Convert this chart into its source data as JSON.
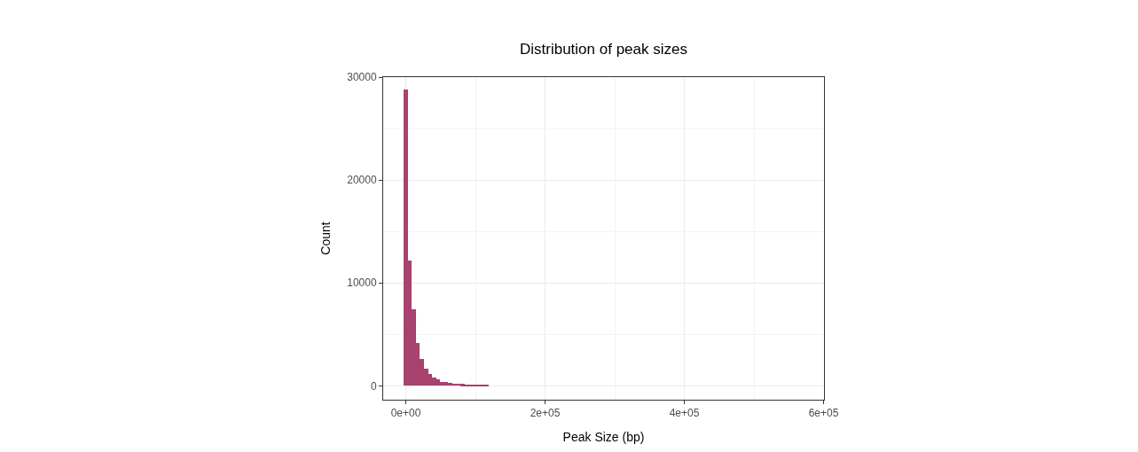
{
  "chart_data": {
    "type": "histogram",
    "title": "Distribution of peak sizes",
    "xlabel": "Peak Size (bp)",
    "ylabel": "Count",
    "color": "#a8426e",
    "bins": [
      -2900,
      2900,
      8700,
      14500,
      20300,
      26100,
      31900,
      37700,
      43500,
      49300,
      55100,
      60900,
      66700,
      72500,
      78300,
      84100,
      89900,
      95700,
      101500,
      107300,
      113100,
      118900,
      124700,
      130500,
      136300,
      142100,
      147900,
      153700,
      159500,
      165300,
      171100,
      176900,
      182700,
      188500,
      194300,
      200100,
      205900,
      211700,
      217500,
      223300,
      229100,
      234900,
      240700,
      246500,
      252300,
      258100,
      263900,
      269700,
      275500,
      281300,
      287100,
      292900,
      298700,
      304500,
      310300,
      316100,
      321900,
      327700,
      333500,
      339300,
      345100,
      350900,
      356700,
      362500,
      368300,
      374100,
      379900,
      385700,
      391500,
      397300,
      403100,
      408900,
      414700,
      420500,
      426300,
      432100,
      437900,
      443700,
      449500,
      455300,
      461100,
      466900,
      472700,
      478500,
      484300,
      490100,
      495900,
      501700,
      507500,
      513300,
      519100,
      524900,
      530700,
      536500,
      542300,
      548100,
      553900,
      559700,
      565500,
      571300,
      577100
    ],
    "values": [
      28770,
      12150,
      7460,
      4190,
      2600,
      1680,
      1120,
      840,
      670,
      420,
      340,
      280,
      250,
      220,
      170,
      150,
      100,
      80,
      60,
      50,
      40,
      0,
      0,
      0,
      0,
      0,
      0,
      0,
      0,
      0,
      0,
      0,
      0,
      0,
      0,
      0,
      0,
      0,
      0,
      0,
      0,
      0,
      0,
      0,
      0,
      0,
      0,
      0,
      0,
      0,
      0,
      0,
      0,
      0,
      0,
      0,
      0,
      0,
      0,
      0,
      0,
      0,
      0,
      0,
      0,
      0,
      0,
      0,
      0,
      0,
      0,
      0,
      0,
      0,
      0,
      0,
      0,
      0,
      0,
      0,
      0,
      0,
      0,
      0,
      0,
      0,
      0,
      0,
      0,
      0,
      0,
      0,
      0,
      0,
      0,
      0,
      0,
      0,
      0,
      0
    ],
    "xlim": [
      -32500,
      600600
    ],
    "ylim": [
      -1340,
      30000
    ],
    "xticks": [
      {
        "value": 0,
        "label": "0e+00"
      },
      {
        "value": 200000,
        "label": "2e+05"
      },
      {
        "value": 400000,
        "label": "4e+05"
      },
      {
        "value": 600000,
        "label": "6e+05"
      }
    ],
    "yticks": [
      0,
      10000,
      20000,
      30000
    ],
    "grid": true
  }
}
